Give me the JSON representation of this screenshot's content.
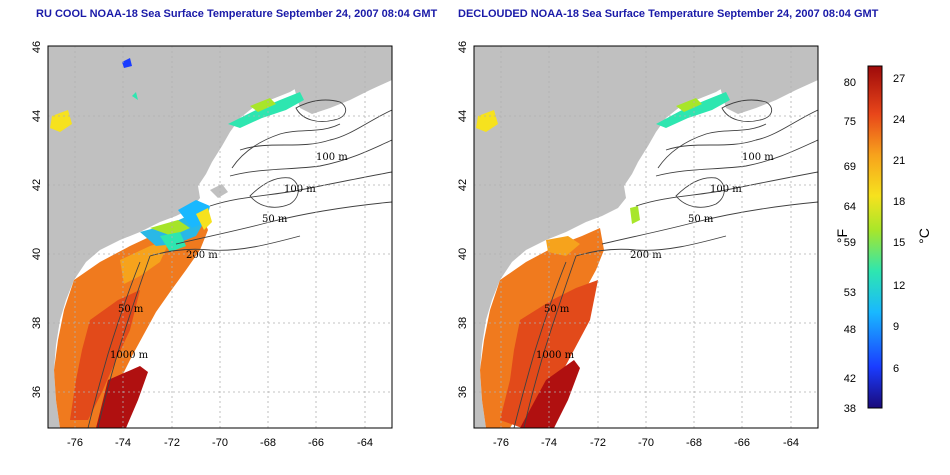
{
  "panels": [
    {
      "title": "RU COOL NOAA-18 Sea Surface Temperature September 24, 2007 08:04 GMT",
      "contour_labels": [
        "100 m",
        "100 m",
        "50 m",
        "200 m",
        "50 m",
        "1000 m"
      ]
    },
    {
      "title": "DECLOUDED NOAA-18 Sea Surface Temperature September 24, 2007 08:04 GMT",
      "contour_labels": [
        "100 m",
        "100 m",
        "50 m",
        "200 m",
        "50 m",
        "1000 m"
      ]
    }
  ],
  "axes": {
    "x_ticks": [
      "-76",
      "-74",
      "-72",
      "-70",
      "-68",
      "-66",
      "-64"
    ],
    "y_ticks": [
      "36",
      "38",
      "40",
      "42",
      "44",
      "46"
    ]
  },
  "colorbar": {
    "fahrenheit_ticks": [
      "80",
      "75",
      "69",
      "64",
      "59",
      "53",
      "48",
      "42",
      "38"
    ],
    "celsius_ticks": [
      "27",
      "24",
      "21",
      "18",
      "15",
      "12",
      "9",
      "6"
    ],
    "fahrenheit_label": "°F",
    "celsius_label": "°C"
  },
  "colors": {
    "land": "#c0c0c0",
    "title": "#1a1aa8",
    "grid": "#b0b0b0"
  }
}
